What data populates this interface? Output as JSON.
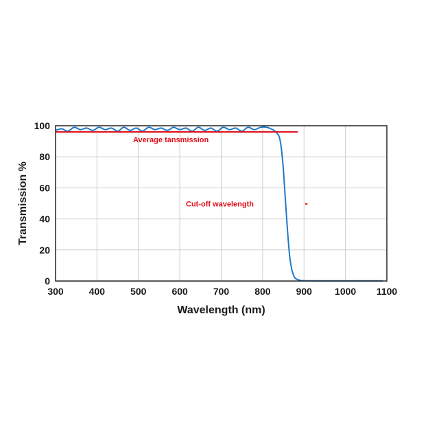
{
  "chart_data": {
    "type": "line",
    "title": "",
    "xlabel": "Wavelength (nm)",
    "ylabel": "Transmission %",
    "xlim": [
      300,
      1100
    ],
    "ylim": [
      0,
      100
    ],
    "xticks": [
      300,
      400,
      500,
      600,
      700,
      800,
      900,
      1000,
      1100
    ],
    "yticks": [
      0,
      20,
      40,
      60,
      80,
      100
    ],
    "grid": true,
    "legend": "none",
    "colors": {
      "series": "#1f78c8",
      "annotation": "#e0101c",
      "grid": "#cccccc",
      "axes": "#222222"
    },
    "series": [
      {
        "x": [
          300,
          315,
          330,
          345,
          360,
          375,
          390,
          405,
          420,
          435,
          450,
          465,
          480,
          495,
          510,
          525,
          540,
          555,
          570,
          585,
          600,
          615,
          630,
          645,
          660,
          675,
          690,
          705,
          720,
          735,
          750,
          765,
          780,
          795,
          810,
          820,
          830,
          840,
          845,
          850,
          855,
          860,
          865,
          870,
          875,
          880,
          890,
          900,
          950,
          1000,
          1050,
          1090
        ],
        "values": [
          97,
          98,
          96.5,
          99,
          97.5,
          98.5,
          97,
          99,
          97.5,
          98.5,
          96.5,
          99,
          97,
          98.5,
          96.5,
          99,
          97.5,
          98.5,
          97,
          99,
          97.5,
          98.5,
          96.5,
          99,
          97,
          98.5,
          96.5,
          99,
          97.5,
          98.5,
          96.5,
          99,
          97.5,
          99,
          99,
          98,
          96.5,
          93,
          86,
          72,
          52,
          33,
          17,
          8,
          3.5,
          1.5,
          0.5,
          0.2,
          0.1,
          0.1,
          0.1,
          0.1
        ]
      }
    ],
    "annotations": [
      {
        "text": "Average tansmission",
        "y": 96,
        "x_start": 300,
        "x_end": 885
      },
      {
        "text": "Cut-off wavelength",
        "y": 51,
        "x_start": 800,
        "x_end": 905
      }
    ]
  }
}
